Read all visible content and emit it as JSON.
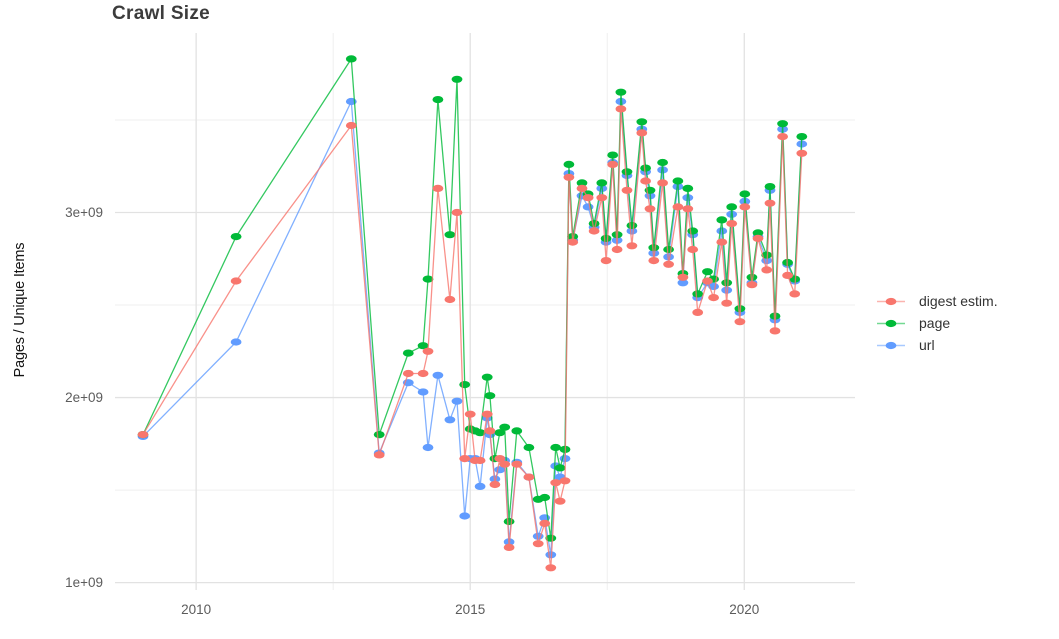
{
  "title": "Crawl Size",
  "axes": {
    "y_label": "Pages / Unique Items",
    "x_label": ""
  },
  "legend": {
    "position": "right",
    "entries": [
      {
        "label": "digest estim.",
        "color": "#F8766D"
      },
      {
        "label": "page",
        "color": "#00BA38"
      },
      {
        "label": "url",
        "color": "#619CFF"
      }
    ]
  },
  "colors": {
    "background": "#ffffff",
    "grid_major": "#e2e2e2",
    "grid_minor": "#efefef",
    "tick_text": "#5c5c5c",
    "title_text": "#3c3c3c"
  },
  "chart_data": {
    "type": "line",
    "title": "Crawl Size",
    "xlabel": "",
    "ylabel": "Pages / Unique Items",
    "unit": "values in billions (1e9) of pages / unique items; x = year",
    "x_range": [
      2008.52,
      2022.02
    ],
    "y_range": [
      0.96,
      3.97
    ],
    "x_major_ticks": [
      2010,
      2015,
      2020
    ],
    "x_tick_labels": [
      "2010",
      "2015",
      "2020"
    ],
    "x_minor_ticks": [
      2012.5,
      2017.5
    ],
    "y_major_ticks": [
      1,
      2,
      3
    ],
    "y_tick_labels": [
      "1e+09",
      "2e+09",
      "3e+09"
    ],
    "y_minor_ticks": [
      1.5,
      2.5,
      3.5
    ],
    "grid": true,
    "legend_position": "right",
    "series": [
      {
        "name": "digest estim.",
        "color": "#F8766D",
        "points": [
          [
            2009.03,
            1.8
          ],
          [
            2010.73,
            2.63
          ],
          [
            2012.83,
            3.47
          ],
          [
            2013.34,
            1.69
          ],
          [
            2013.87,
            2.13
          ],
          [
            2014.14,
            2.13
          ],
          [
            2014.23,
            2.25
          ],
          [
            2014.41,
            3.13
          ],
          [
            2014.63,
            2.53
          ],
          [
            2014.76,
            3.0
          ],
          [
            2014.9,
            1.67
          ],
          [
            2015.0,
            1.91
          ],
          [
            2015.09,
            1.66
          ],
          [
            2015.18,
            1.66
          ],
          [
            2015.31,
            1.91
          ],
          [
            2015.36,
            1.82
          ],
          [
            2015.45,
            1.53
          ],
          [
            2015.54,
            1.67
          ],
          [
            2015.63,
            1.64
          ],
          [
            2015.71,
            1.19
          ],
          [
            2015.85,
            1.64
          ],
          [
            2016.07,
            1.57
          ],
          [
            2016.24,
            1.21
          ],
          [
            2016.36,
            1.32
          ],
          [
            2016.47,
            1.08
          ],
          [
            2016.56,
            1.54
          ],
          [
            2016.64,
            1.44
          ],
          [
            2016.73,
            1.55
          ],
          [
            2016.8,
            3.19
          ],
          [
            2016.87,
            2.84
          ],
          [
            2017.04,
            3.13
          ],
          [
            2017.15,
            3.08
          ],
          [
            2017.26,
            2.9
          ],
          [
            2017.4,
            3.08
          ],
          [
            2017.48,
            2.74
          ],
          [
            2017.6,
            3.26
          ],
          [
            2017.68,
            2.8
          ],
          [
            2017.75,
            3.56
          ],
          [
            2017.86,
            3.12
          ],
          [
            2017.95,
            2.82
          ],
          [
            2018.13,
            3.43
          ],
          [
            2018.2,
            3.17
          ],
          [
            2018.28,
            3.02
          ],
          [
            2018.35,
            2.74
          ],
          [
            2018.51,
            3.16
          ],
          [
            2018.62,
            2.72
          ],
          [
            2018.79,
            3.03
          ],
          [
            2018.88,
            2.65
          ],
          [
            2018.97,
            3.02
          ],
          [
            2019.06,
            2.8
          ],
          [
            2019.15,
            2.46
          ],
          [
            2019.33,
            2.63
          ],
          [
            2019.44,
            2.54
          ],
          [
            2019.59,
            2.84
          ],
          [
            2019.68,
            2.51
          ],
          [
            2019.77,
            2.94
          ],
          [
            2019.92,
            2.41
          ],
          [
            2020.01,
            3.03
          ],
          [
            2020.14,
            2.61
          ],
          [
            2020.25,
            2.86
          ],
          [
            2020.41,
            2.69
          ],
          [
            2020.47,
            3.05
          ],
          [
            2020.56,
            2.36
          ],
          [
            2020.7,
            3.41
          ],
          [
            2020.79,
            2.66
          ],
          [
            2020.92,
            2.56
          ],
          [
            2021.05,
            3.32
          ]
        ]
      },
      {
        "name": "page",
        "color": "#00BA38",
        "points": [
          [
            2009.03,
            1.8
          ],
          [
            2010.73,
            2.87
          ],
          [
            2012.83,
            3.83
          ],
          [
            2013.34,
            1.8
          ],
          [
            2013.87,
            2.24
          ],
          [
            2014.14,
            2.28
          ],
          [
            2014.23,
            2.64
          ],
          [
            2014.41,
            3.61
          ],
          [
            2014.63,
            2.88
          ],
          [
            2014.76,
            3.72
          ],
          [
            2014.9,
            2.07
          ],
          [
            2015.0,
            1.83
          ],
          [
            2015.09,
            1.82
          ],
          [
            2015.18,
            1.81
          ],
          [
            2015.31,
            2.11
          ],
          [
            2015.36,
            2.01
          ],
          [
            2015.45,
            1.67
          ],
          [
            2015.54,
            1.81
          ],
          [
            2015.63,
            1.84
          ],
          [
            2015.71,
            1.33
          ],
          [
            2015.85,
            1.82
          ],
          [
            2016.07,
            1.73
          ],
          [
            2016.24,
            1.45
          ],
          [
            2016.36,
            1.46
          ],
          [
            2016.47,
            1.24
          ],
          [
            2016.56,
            1.73
          ],
          [
            2016.64,
            1.62
          ],
          [
            2016.73,
            1.72
          ],
          [
            2016.8,
            3.26
          ],
          [
            2016.87,
            2.87
          ],
          [
            2017.04,
            3.16
          ],
          [
            2017.15,
            3.1
          ],
          [
            2017.26,
            2.94
          ],
          [
            2017.4,
            3.16
          ],
          [
            2017.48,
            2.86
          ],
          [
            2017.6,
            3.31
          ],
          [
            2017.68,
            2.88
          ],
          [
            2017.75,
            3.65
          ],
          [
            2017.86,
            3.22
          ],
          [
            2017.95,
            2.93
          ],
          [
            2018.13,
            3.49
          ],
          [
            2018.2,
            3.24
          ],
          [
            2018.28,
            3.12
          ],
          [
            2018.35,
            2.81
          ],
          [
            2018.51,
            3.27
          ],
          [
            2018.62,
            2.8
          ],
          [
            2018.79,
            3.17
          ],
          [
            2018.88,
            2.67
          ],
          [
            2018.97,
            3.13
          ],
          [
            2019.06,
            2.9
          ],
          [
            2019.15,
            2.56
          ],
          [
            2019.33,
            2.68
          ],
          [
            2019.44,
            2.64
          ],
          [
            2019.59,
            2.96
          ],
          [
            2019.68,
            2.62
          ],
          [
            2019.77,
            3.03
          ],
          [
            2019.92,
            2.48
          ],
          [
            2020.01,
            3.1
          ],
          [
            2020.14,
            2.65
          ],
          [
            2020.25,
            2.89
          ],
          [
            2020.41,
            2.77
          ],
          [
            2020.47,
            3.14
          ],
          [
            2020.56,
            2.44
          ],
          [
            2020.7,
            3.48
          ],
          [
            2020.79,
            2.73
          ],
          [
            2020.92,
            2.64
          ],
          [
            2021.05,
            3.41
          ]
        ]
      },
      {
        "name": "url",
        "color": "#619CFF",
        "points": [
          [
            2009.03,
            1.79
          ],
          [
            2010.73,
            2.3
          ],
          [
            2012.83,
            3.6
          ],
          [
            2013.34,
            1.7
          ],
          [
            2013.87,
            2.08
          ],
          [
            2014.14,
            2.03
          ],
          [
            2014.23,
            1.73
          ],
          [
            2014.41,
            2.12
          ],
          [
            2014.63,
            1.88
          ],
          [
            2014.76,
            1.98
          ],
          [
            2014.9,
            1.36
          ],
          [
            2015.0,
            1.67
          ],
          [
            2015.09,
            1.67
          ],
          [
            2015.18,
            1.52
          ],
          [
            2015.31,
            1.89
          ],
          [
            2015.36,
            1.8
          ],
          [
            2015.45,
            1.56
          ],
          [
            2015.54,
            1.61
          ],
          [
            2015.63,
            1.66
          ],
          [
            2015.71,
            1.22
          ],
          [
            2015.85,
            1.65
          ],
          [
            2016.07,
            1.57
          ],
          [
            2016.24,
            1.25
          ],
          [
            2016.36,
            1.35
          ],
          [
            2016.47,
            1.15
          ],
          [
            2016.56,
            1.63
          ],
          [
            2016.64,
            1.57
          ],
          [
            2016.73,
            1.67
          ],
          [
            2016.8,
            3.21
          ],
          [
            2016.87,
            2.85
          ],
          [
            2017.04,
            3.09
          ],
          [
            2017.15,
            3.03
          ],
          [
            2017.26,
            2.92
          ],
          [
            2017.4,
            3.13
          ],
          [
            2017.48,
            2.84
          ],
          [
            2017.6,
            3.27
          ],
          [
            2017.68,
            2.85
          ],
          [
            2017.75,
            3.6
          ],
          [
            2017.86,
            3.2
          ],
          [
            2017.95,
            2.9
          ],
          [
            2018.13,
            3.45
          ],
          [
            2018.2,
            3.22
          ],
          [
            2018.28,
            3.09
          ],
          [
            2018.35,
            2.78
          ],
          [
            2018.51,
            3.23
          ],
          [
            2018.62,
            2.76
          ],
          [
            2018.79,
            3.14
          ],
          [
            2018.88,
            2.62
          ],
          [
            2018.97,
            3.08
          ],
          [
            2019.06,
            2.88
          ],
          [
            2019.15,
            2.54
          ],
          [
            2019.33,
            2.62
          ],
          [
            2019.44,
            2.6
          ],
          [
            2019.59,
            2.9
          ],
          [
            2019.68,
            2.58
          ],
          [
            2019.77,
            2.99
          ],
          [
            2019.92,
            2.46
          ],
          [
            2020.01,
            3.06
          ],
          [
            2020.14,
            2.62
          ],
          [
            2020.25,
            2.87
          ],
          [
            2020.41,
            2.74
          ],
          [
            2020.47,
            3.12
          ],
          [
            2020.56,
            2.42
          ],
          [
            2020.7,
            3.45
          ],
          [
            2020.79,
            2.72
          ],
          [
            2020.92,
            2.63
          ],
          [
            2021.05,
            3.37
          ]
        ]
      }
    ]
  }
}
